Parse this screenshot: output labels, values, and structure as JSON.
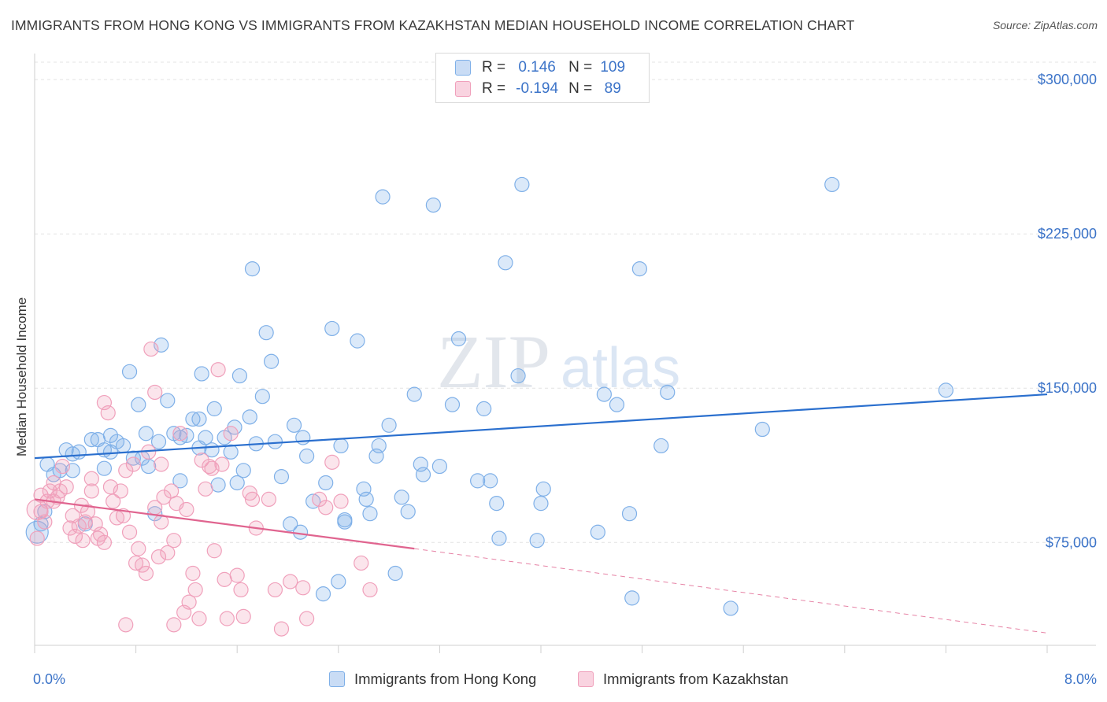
{
  "title": "IMMIGRANTS FROM HONG KONG VS IMMIGRANTS FROM KAZAKHSTAN MEDIAN HOUSEHOLD INCOME CORRELATION CHART",
  "source": "Source: ZipAtlas.com",
  "watermark": {
    "zip": "ZIP",
    "atlas": "atlas"
  },
  "legend_top": {
    "rows": [
      {
        "r_label": "R =",
        "r_value": "0.146",
        "n_label": "N =",
        "n_value": "109",
        "color": "#7fb0e8"
      },
      {
        "r_label": "R =",
        "r_value": "-0.194",
        "n_label": "N =",
        "n_value": "89",
        "color": "#f0a0bb"
      }
    ]
  },
  "chart_data": {
    "type": "scatter",
    "xlabel": "",
    "ylabel": "Median Household Income",
    "xlim": [
      0,
      8
    ],
    "ylim": [
      25000,
      310000
    ],
    "x_tick_labels": [
      "0.0%",
      "8.0%"
    ],
    "y_ticks": [
      75000,
      150000,
      225000,
      300000
    ],
    "y_tick_labels": [
      "$75,000",
      "$150,000",
      "$225,000",
      "$300,000"
    ],
    "grid": "horizontal dashed",
    "legend": "bottom",
    "series": [
      {
        "name": "Immigrants from Hong Kong",
        "color": "#7fb0e8",
        "trend": {
          "x": [
            0,
            8
          ],
          "y": [
            116000,
            147000
          ],
          "style": "solid",
          "color": "#2a6fce"
        },
        "points": [
          [
            0.05,
            84000
          ],
          [
            0.08,
            90000
          ],
          [
            0.1,
            113000
          ],
          [
            0.15,
            108000
          ],
          [
            0.2,
            110000
          ],
          [
            0.25,
            120000
          ],
          [
            0.3,
            118000
          ],
          [
            0.35,
            119000
          ],
          [
            0.4,
            84000
          ],
          [
            0.45,
            125000
          ],
          [
            0.5,
            125000
          ],
          [
            0.55,
            111000
          ],
          [
            0.6,
            127000
          ],
          [
            0.6,
            119000
          ],
          [
            0.7,
            122000
          ],
          [
            0.75,
            158000
          ],
          [
            0.78,
            116000
          ],
          [
            0.82,
            142000
          ],
          [
            0.85,
            116000
          ],
          [
            0.88,
            128000
          ],
          [
            0.95,
            89000
          ],
          [
            0.98,
            124000
          ],
          [
            1.0,
            171000
          ],
          [
            1.05,
            144000
          ],
          [
            1.1,
            128000
          ],
          [
            1.15,
            126000
          ],
          [
            1.2,
            127000
          ],
          [
            1.25,
            135000
          ],
          [
            1.3,
            135000
          ],
          [
            1.3,
            121000
          ],
          [
            1.32,
            157000
          ],
          [
            1.35,
            126000
          ],
          [
            1.4,
            120000
          ],
          [
            1.42,
            140000
          ],
          [
            1.5,
            126000
          ],
          [
            1.55,
            119000
          ],
          [
            1.58,
            131000
          ],
          [
            1.6,
            104000
          ],
          [
            1.62,
            156000
          ],
          [
            1.65,
            110000
          ],
          [
            1.7,
            136000
          ],
          [
            1.72,
            208000
          ],
          [
            1.75,
            123000
          ],
          [
            1.8,
            146000
          ],
          [
            1.83,
            177000
          ],
          [
            1.87,
            163000
          ],
          [
            1.9,
            124000
          ],
          [
            1.95,
            107000
          ],
          [
            2.02,
            84000
          ],
          [
            2.05,
            132000
          ],
          [
            2.1,
            80000
          ],
          [
            2.12,
            126000
          ],
          [
            2.15,
            117000
          ],
          [
            2.28,
            50000
          ],
          [
            2.3,
            104000
          ],
          [
            2.35,
            179000
          ],
          [
            2.4,
            56000
          ],
          [
            2.42,
            122000
          ],
          [
            2.45,
            86000
          ],
          [
            2.45,
            85000
          ],
          [
            2.55,
            173000
          ],
          [
            2.6,
            101000
          ],
          [
            2.62,
            96000
          ],
          [
            2.65,
            89000
          ],
          [
            2.7,
            117000
          ],
          [
            2.72,
            122000
          ],
          [
            2.75,
            243000
          ],
          [
            2.8,
            132000
          ],
          [
            2.85,
            60000
          ],
          [
            2.9,
            97000
          ],
          [
            2.95,
            90000
          ],
          [
            3.0,
            147000
          ],
          [
            3.05,
            113000
          ],
          [
            3.07,
            108000
          ],
          [
            3.15,
            239000
          ],
          [
            3.2,
            112000
          ],
          [
            3.3,
            142000
          ],
          [
            3.35,
            174000
          ],
          [
            3.5,
            105000
          ],
          [
            3.55,
            140000
          ],
          [
            3.6,
            105000
          ],
          [
            3.65,
            94000
          ],
          [
            3.67,
            77000
          ],
          [
            3.72,
            211000
          ],
          [
            3.82,
            156000
          ],
          [
            3.85,
            249000
          ],
          [
            3.97,
            76000
          ],
          [
            4.0,
            94000
          ],
          [
            4.02,
            101000
          ],
          [
            4.45,
            80000
          ],
          [
            4.5,
            147000
          ],
          [
            4.6,
            142000
          ],
          [
            4.7,
            89000
          ],
          [
            4.72,
            48000
          ],
          [
            4.78,
            208000
          ],
          [
            4.95,
            122000
          ],
          [
            5.0,
            148000
          ],
          [
            5.5,
            43000
          ],
          [
            5.75,
            130000
          ],
          [
            6.3,
            249000
          ],
          [
            7.2,
            149000
          ],
          [
            0.3,
            110000
          ],
          [
            0.55,
            120000
          ],
          [
            0.65,
            124000
          ],
          [
            0.9,
            112000
          ],
          [
            1.15,
            105000
          ],
          [
            1.45,
            103000
          ],
          [
            2.2,
            95000
          ]
        ]
      },
      {
        "name": "Immigrants from Kazakhstan",
        "color": "#f0a0bb",
        "trend": {
          "x": [
            0,
            3.0,
            8
          ],
          "y": [
            96000,
            72000,
            31000
          ],
          "style": "solid-then-dashed",
          "color": "#e0648f"
        },
        "points": [
          [
            0.02,
            77000
          ],
          [
            0.05,
            90000
          ],
          [
            0.08,
            85000
          ],
          [
            0.1,
            95000
          ],
          [
            0.12,
            100000
          ],
          [
            0.15,
            104000
          ],
          [
            0.18,
            97000
          ],
          [
            0.2,
            100000
          ],
          [
            0.22,
            112000
          ],
          [
            0.25,
            102000
          ],
          [
            0.28,
            82000
          ],
          [
            0.3,
            88000
          ],
          [
            0.32,
            78000
          ],
          [
            0.35,
            83000
          ],
          [
            0.37,
            93000
          ],
          [
            0.4,
            85000
          ],
          [
            0.42,
            90000
          ],
          [
            0.45,
            106000
          ],
          [
            0.48,
            84000
          ],
          [
            0.5,
            77000
          ],
          [
            0.52,
            79000
          ],
          [
            0.55,
            75000
          ],
          [
            0.55,
            143000
          ],
          [
            0.58,
            138000
          ],
          [
            0.6,
            102000
          ],
          [
            0.62,
            95000
          ],
          [
            0.65,
            87000
          ],
          [
            0.68,
            100000
          ],
          [
            0.7,
            88000
          ],
          [
            0.72,
            110000
          ],
          [
            0.75,
            80000
          ],
          [
            0.78,
            113000
          ],
          [
            0.8,
            65000
          ],
          [
            0.82,
            72000
          ],
          [
            0.85,
            64000
          ],
          [
            0.88,
            60000
          ],
          [
            0.9,
            119000
          ],
          [
            0.92,
            169000
          ],
          [
            0.95,
            92000
          ],
          [
            0.98,
            68000
          ],
          [
            1.0,
            113000
          ],
          [
            1.02,
            97000
          ],
          [
            1.05,
            70000
          ],
          [
            1.08,
            100000
          ],
          [
            1.1,
            76000
          ],
          [
            1.12,
            94000
          ],
          [
            1.15,
            128000
          ],
          [
            1.18,
            41000
          ],
          [
            1.2,
            91000
          ],
          [
            1.25,
            60000
          ],
          [
            1.27,
            52000
          ],
          [
            1.3,
            38000
          ],
          [
            1.32,
            115000
          ],
          [
            1.35,
            101000
          ],
          [
            1.38,
            112000
          ],
          [
            1.4,
            111000
          ],
          [
            1.42,
            71000
          ],
          [
            1.45,
            159000
          ],
          [
            1.48,
            113000
          ],
          [
            1.5,
            57000
          ],
          [
            1.52,
            38000
          ],
          [
            1.55,
            128000
          ],
          [
            1.6,
            59000
          ],
          [
            1.63,
            52000
          ],
          [
            1.65,
            39000
          ],
          [
            1.7,
            99000
          ],
          [
            1.72,
            96000
          ],
          [
            1.75,
            82000
          ],
          [
            1.85,
            96000
          ],
          [
            1.9,
            52000
          ],
          [
            1.95,
            33000
          ],
          [
            2.02,
            56000
          ],
          [
            2.12,
            53000
          ],
          [
            2.15,
            38000
          ],
          [
            2.25,
            96000
          ],
          [
            2.3,
            92000
          ],
          [
            2.35,
            114000
          ],
          [
            2.42,
            95000
          ],
          [
            2.58,
            65000
          ],
          [
            2.65,
            52000
          ],
          [
            0.72,
            35000
          ],
          [
            0.95,
            148000
          ],
          [
            1.1,
            35000
          ],
          [
            1.22,
            46000
          ],
          [
            0.38,
            76000
          ],
          [
            0.05,
            98000
          ],
          [
            0.15,
            95000
          ],
          [
            1.0,
            85000
          ],
          [
            0.45,
            100000
          ]
        ]
      }
    ]
  },
  "legend_bottom": {
    "items": [
      {
        "label": "Immigrants from Hong Kong",
        "color": "#7fb0e8"
      },
      {
        "label": "Immigrants from Kazakhstan",
        "color": "#f0a0bb"
      }
    ]
  }
}
